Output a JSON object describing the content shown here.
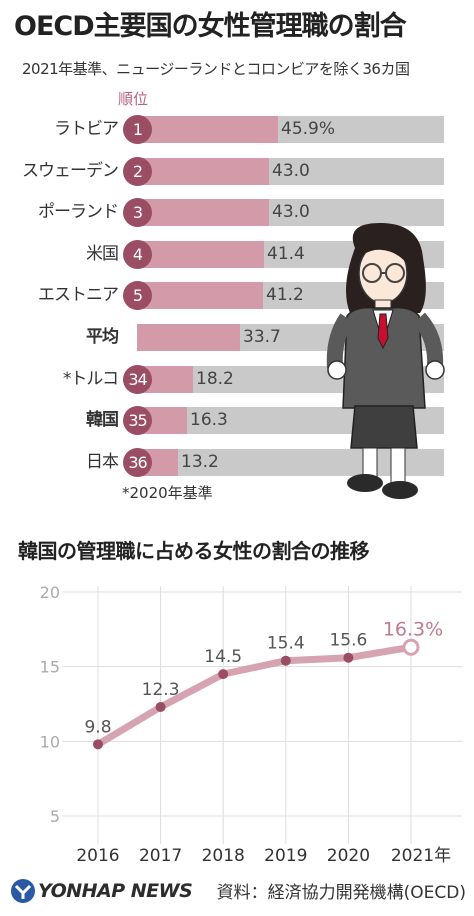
{
  "title": "OECD主要国の女性管理職の割合",
  "subtitle": "2021年基準、ニュージーランドとコロンビアを除く36カ国",
  "rank_header": "順位",
  "footnote": "*2020年基準",
  "section2_title": "韓国の管理職に占める女性の割合の推移",
  "source": "資料：経済協力開発機構(OECD)",
  "logo": "YONHAP NEWS",
  "colors": {
    "bar": "#d39aa9",
    "track": "#c9c9c9",
    "accent": "#9a4d63",
    "line": "#d6a3b0"
  },
  "chart_data": [
    {
      "type": "bar",
      "title": "OECD主要国の女性管理職の割合",
      "unit_suffix": "%",
      "max": 100,
      "rows": [
        {
          "name": "ラトビア",
          "rank": "1",
          "value": 45.9,
          "label": "45.9%",
          "bold": false
        },
        {
          "name": "スウェーデン",
          "rank": "2",
          "value": 43.0,
          "label": "43.0",
          "bold": false
        },
        {
          "name": "ポーランド",
          "rank": "3",
          "value": 43.0,
          "label": "43.0",
          "bold": false
        },
        {
          "name": "米国",
          "rank": "4",
          "value": 41.4,
          "label": "41.4",
          "bold": false
        },
        {
          "name": "エストニア",
          "rank": "5",
          "value": 41.2,
          "label": "41.2",
          "bold": false
        },
        {
          "name": "平均",
          "rank": "",
          "value": 33.7,
          "label": "33.7",
          "bold": true
        },
        {
          "name": "*トルコ",
          "rank": "34",
          "value": 18.2,
          "label": "18.2",
          "bold": false
        },
        {
          "name": "韓国",
          "rank": "35",
          "value": 16.3,
          "label": "16.3",
          "bold": true
        },
        {
          "name": "日本",
          "rank": "36",
          "value": 13.2,
          "label": "13.2",
          "bold": false
        }
      ]
    },
    {
      "type": "line",
      "title": "韓国の管理職に占める女性の割合の推移",
      "x": [
        "2016",
        "2017",
        "2018",
        "2019",
        "2020",
        "2021年"
      ],
      "y": [
        9.8,
        12.3,
        14.5,
        15.4,
        15.6,
        16.3
      ],
      "point_labels": [
        "9.8",
        "12.3",
        "14.5",
        "15.4",
        "15.6",
        "16.3%"
      ],
      "ylim": [
        5,
        20
      ],
      "yticks": [
        "5",
        "10",
        "15",
        "20"
      ],
      "grid": true
    }
  ]
}
